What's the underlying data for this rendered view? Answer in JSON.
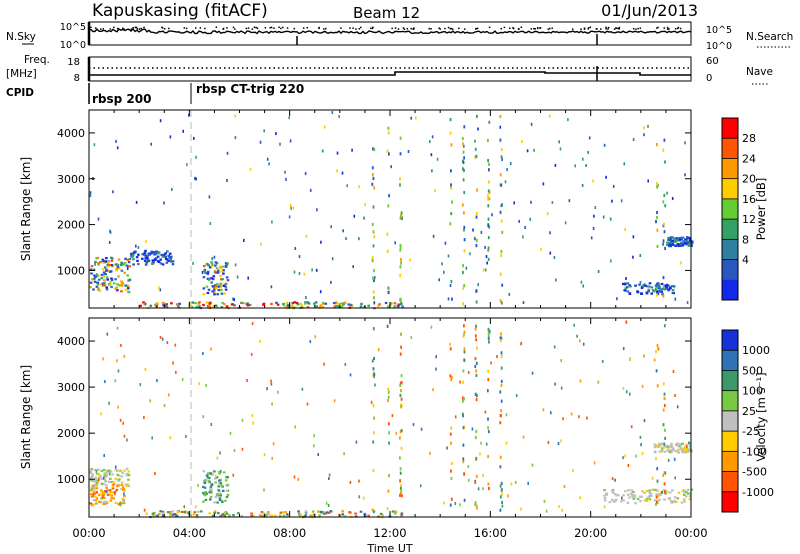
{
  "header": {
    "station": "Kapuskasing (fitACF)",
    "beam": "Beam 12",
    "date": "01/Jun/2013"
  },
  "summary_panels": {
    "nsky_label": "N.Sky",
    "nsky_ticks": [
      "10^5",
      "10^0"
    ],
    "nsearch_label": "N.Search",
    "nsearch_ticks": [
      "10^5",
      "10^0"
    ],
    "freq_label": "Freq.",
    "freq_unit": "[MHz]",
    "freq_ticks": [
      "18",
      "8"
    ],
    "nave_label": "Nave",
    "nave_ticks": [
      "60",
      "0"
    ],
    "cpid_label": "CPID",
    "cpid_segments": [
      {
        "label": "rbsp 200",
        "start_hour": 0
      },
      {
        "label": "rbsp CT-trig 220",
        "start_hour": 4.0
      }
    ]
  },
  "axes": {
    "x_ticks": [
      "00:00",
      "04:00",
      "08:00",
      "12:00",
      "16:00",
      "20:00",
      "00:00"
    ],
    "x_tick_hours": [
      0,
      4,
      8,
      12,
      16,
      20,
      24
    ],
    "xlabel": "Time UT",
    "ylabel": "Slant Range [km]",
    "y_ticks": [
      "1000",
      "2000",
      "3000",
      "4000"
    ],
    "y_tick_values": [
      1000,
      2000,
      3000,
      4000
    ],
    "ylim": [
      180,
      4500
    ]
  },
  "power_colorbar": {
    "label": "Power [dB]",
    "ticks": [
      "28",
      "24",
      "20",
      "16",
      "12",
      "8",
      "4"
    ],
    "colors": [
      "#ff0000",
      "#ff5500",
      "#ff9900",
      "#ffcc00",
      "#66cc33",
      "#33a066",
      "#2f7fa0",
      "#2a56c0",
      "#1428e8"
    ]
  },
  "velocity_colorbar": {
    "label": "Velocity [m s⁻¹]",
    "ticks": [
      "1000",
      "500",
      "100",
      "25",
      "-25",
      "-100",
      "-500",
      "-1000"
    ],
    "colors": [
      "#1432d8",
      "#2f72b8",
      "#3c9a6a",
      "#7ac943",
      "#c0c0c0",
      "#ffcc00",
      "#ff9900",
      "#ff5500",
      "#ff0000"
    ]
  },
  "chart_data": {
    "type": "heatmap",
    "x_unit": "hours UT",
    "y_unit": "km",
    "xlim": [
      0,
      24
    ],
    "ylim": [
      180,
      4500
    ],
    "power_clusters": [
      {
        "t": [
          0.0,
          1.6
        ],
        "r": [
          550,
          1300
        ],
        "level": "mixed-high"
      },
      {
        "t": [
          1.6,
          3.3
        ],
        "r": [
          1150,
          1450
        ],
        "level": "low"
      },
      {
        "t": [
          4.5,
          5.5
        ],
        "r": [
          500,
          1200
        ],
        "level": "mixed-high"
      },
      {
        "t": [
          2.0,
          12.5
        ],
        "r": [
          200,
          330
        ],
        "level": "high"
      },
      {
        "t": [
          21.2,
          23.3
        ],
        "r": [
          500,
          750
        ],
        "level": "low"
      },
      {
        "t": [
          23.0,
          24.0
        ],
        "r": [
          1550,
          1750
        ],
        "level": "low"
      }
    ],
    "velocity_clusters": [
      {
        "t": [
          0.0,
          1.6
        ],
        "r": [
          850,
          1250
        ],
        "v_class": "near-zero"
      },
      {
        "t": [
          0.0,
          1.4
        ],
        "r": [
          450,
          900
        ],
        "v_class": "negative"
      },
      {
        "t": [
          4.5,
          5.5
        ],
        "r": [
          500,
          1200
        ],
        "v_class": "positive"
      },
      {
        "t": [
          2.0,
          12.5
        ],
        "r": [
          200,
          330
        ],
        "v_class": "mixed"
      },
      {
        "t": [
          20.5,
          24.0
        ],
        "r": [
          500,
          800
        ],
        "v_class": "near-zero"
      },
      {
        "t": [
          22.5,
          24.0
        ],
        "r": [
          1600,
          1800
        ],
        "v_class": "near-zero"
      }
    ]
  }
}
